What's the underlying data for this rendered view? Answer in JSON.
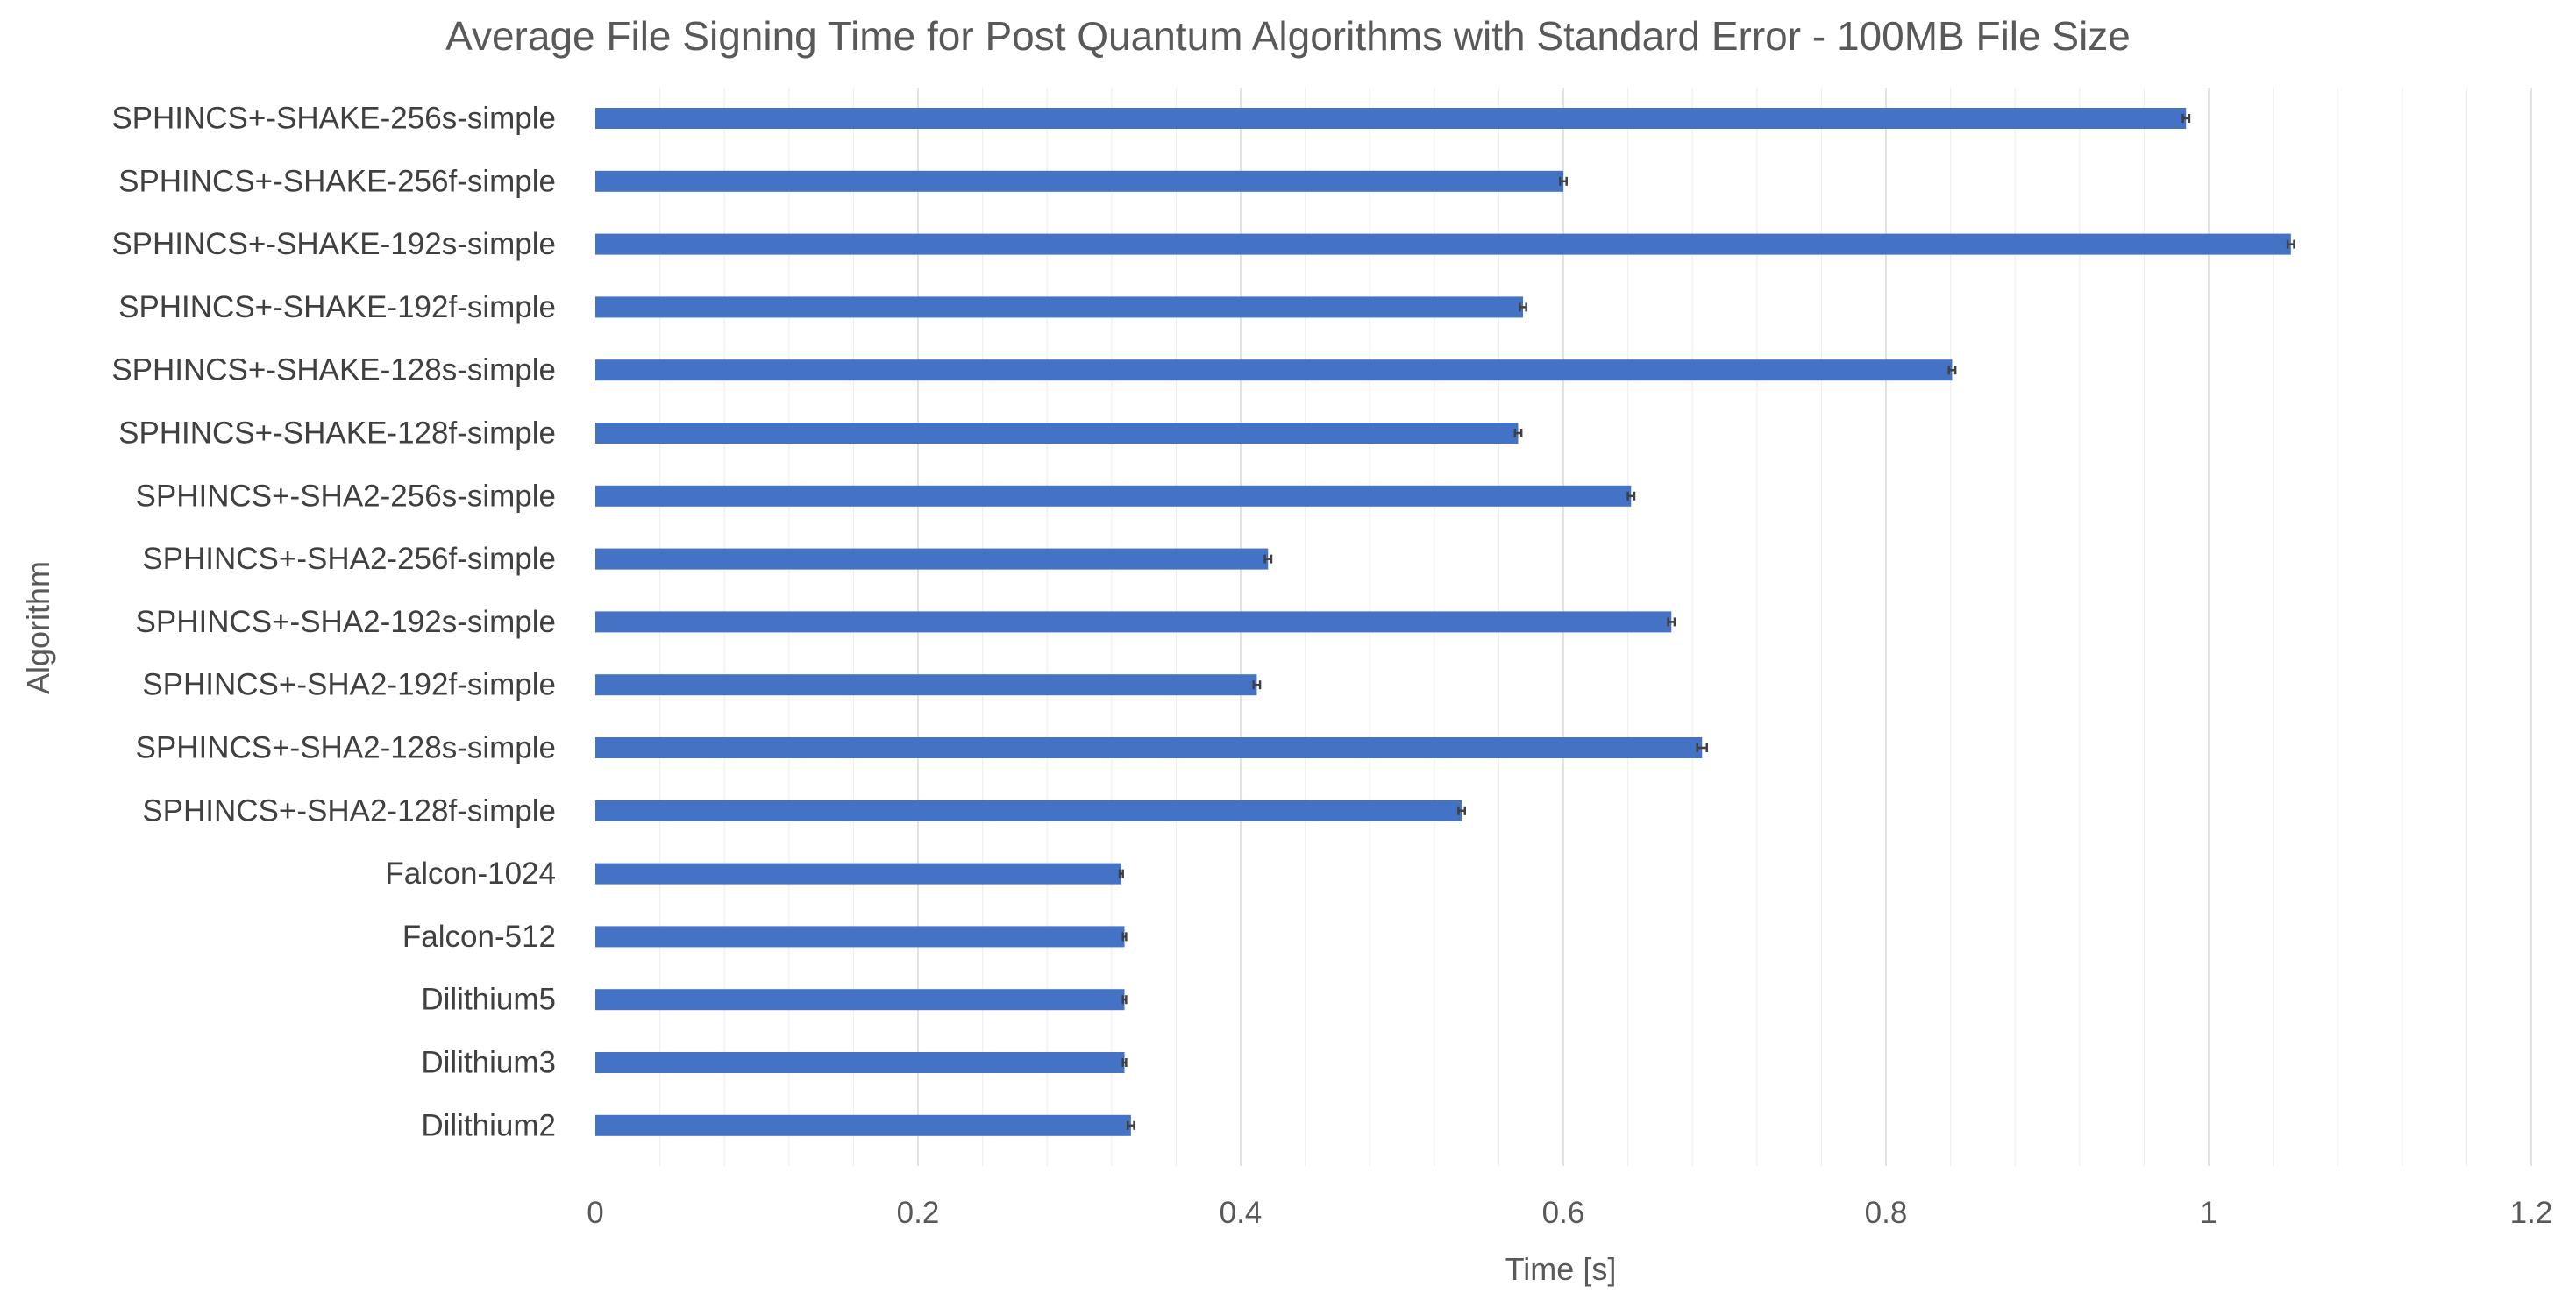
{
  "chart_data": {
    "type": "bar",
    "orientation": "horizontal",
    "title": "Average File Signing Time for Post Quantum Algorithms with Standard Error - 100MB File Size",
    "xlabel": "Time [s]",
    "ylabel": "Algorithm",
    "xlim": [
      0,
      1.2
    ],
    "x_ticks": [
      "0",
      "0.2",
      "0.4",
      "0.6",
      "0.8",
      "1",
      "1.2"
    ],
    "grid": "vertical major and minor gridlines",
    "legend": "none",
    "bar_color": "#4472c4",
    "error_bar_color": "#404040",
    "categories": [
      "SPHINCS+-SHAKE-256s-simple",
      "SPHINCS+-SHAKE-256f-simple",
      "SPHINCS+-SHAKE-192s-simple",
      "SPHINCS+-SHAKE-192f-simple",
      "SPHINCS+-SHAKE-128s-simple",
      "SPHINCS+-SHAKE-128f-simple",
      "SPHINCS+-SHA2-256s-simple",
      "SPHINCS+-SHA2-256f-simple",
      "SPHINCS+-SHA2-192s-simple",
      "SPHINCS+-SHA2-192f-simple",
      "SPHINCS+-SHA2-128s-simple",
      "SPHINCS+-SHA2-128f-simple",
      "Falcon-1024",
      "Falcon-512",
      "Dilithium5",
      "Dilithium3",
      "Dilithium2"
    ],
    "values": [
      0.986,
      0.6,
      1.051,
      0.575,
      0.841,
      0.572,
      0.642,
      0.417,
      0.667,
      0.41,
      0.686,
      0.537,
      0.326,
      0.328,
      0.328,
      0.328,
      0.332
    ],
    "errors": [
      0.002,
      0.002,
      0.002,
      0.002,
      0.002,
      0.002,
      0.002,
      0.002,
      0.002,
      0.002,
      0.003,
      0.002,
      0.001,
      0.001,
      0.001,
      0.001,
      0.002
    ]
  }
}
